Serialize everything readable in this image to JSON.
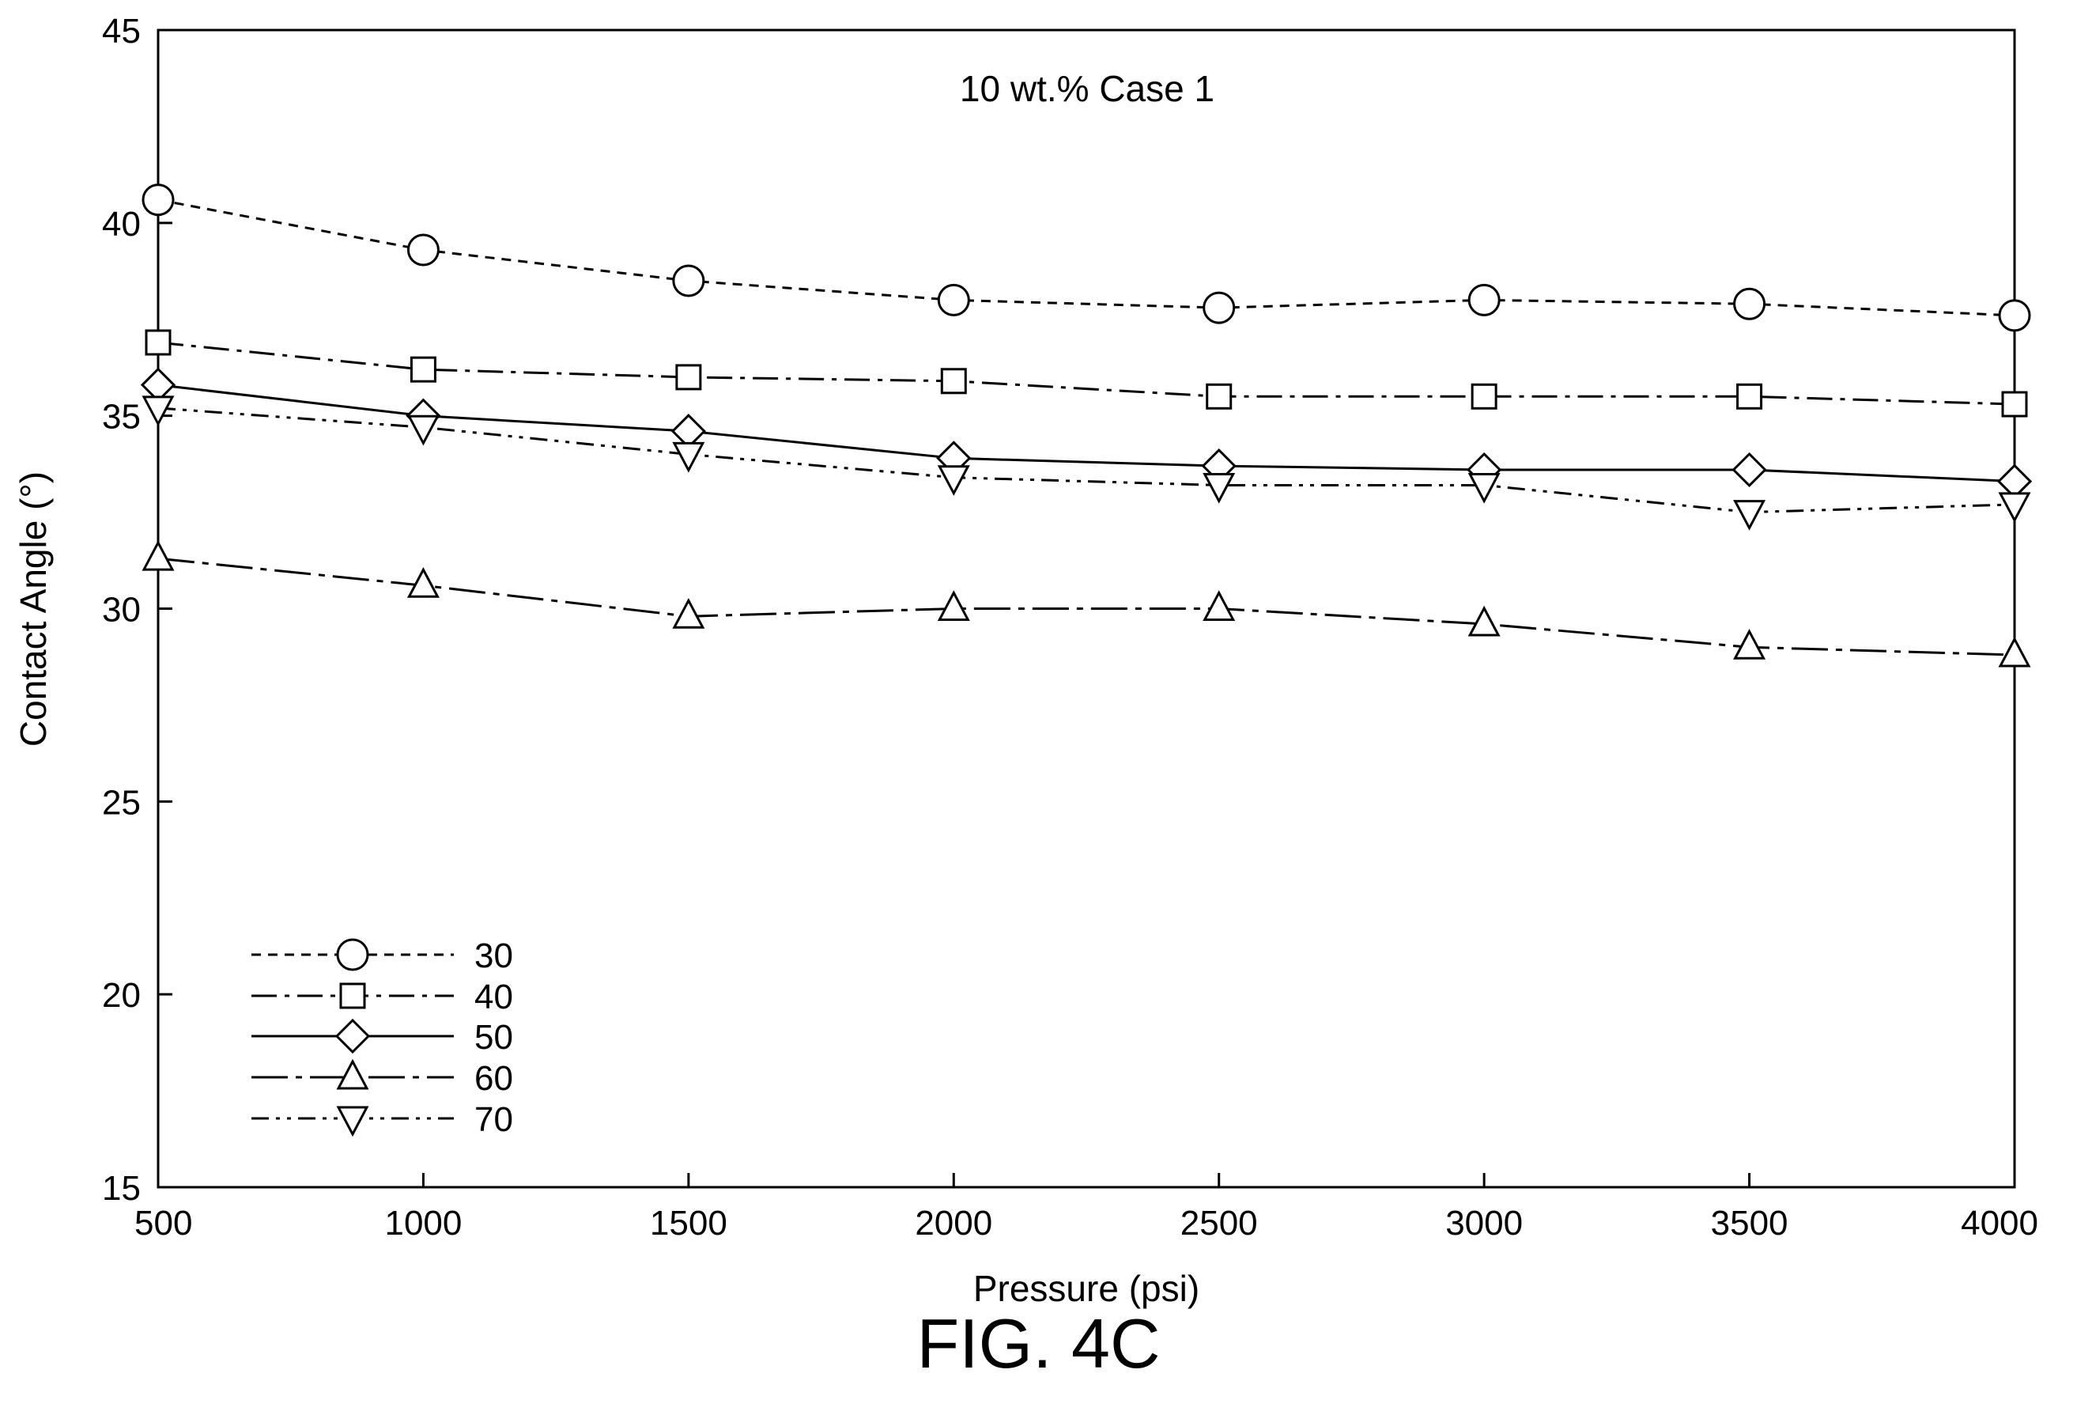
{
  "figure_label": "FIG. 4C",
  "chart_data": {
    "type": "line",
    "title": "10 wt.% Case 1",
    "xlabel": "Pressure (psi)",
    "ylabel": "Contact Angle (°)",
    "xlim": [
      500,
      4000
    ],
    "ylim": [
      15,
      45
    ],
    "x_ticks": [
      500,
      1000,
      1500,
      2000,
      2500,
      3000,
      3500,
      4000
    ],
    "y_ticks": [
      15,
      20,
      25,
      30,
      35,
      40,
      45
    ],
    "grid": false,
    "legend_position": "bottom-left",
    "x": [
      500,
      1000,
      1500,
      2000,
      2500,
      3000,
      3500,
      4000
    ],
    "series": [
      {
        "name": "30",
        "marker": "circle",
        "dash": "short-dash",
        "values": [
          40.6,
          39.3,
          38.5,
          38.0,
          37.8,
          38.0,
          37.9,
          37.6
        ]
      },
      {
        "name": "40",
        "marker": "square",
        "dash": "dash-dot",
        "values": [
          36.9,
          36.2,
          36.0,
          35.9,
          35.5,
          35.5,
          35.5,
          35.3
        ]
      },
      {
        "name": "50",
        "marker": "diamond",
        "dash": "solid",
        "values": [
          35.8,
          35.0,
          34.6,
          33.9,
          33.7,
          33.6,
          33.6,
          33.3
        ]
      },
      {
        "name": "60",
        "marker": "triangle-up",
        "dash": "long-dash-dot",
        "values": [
          31.3,
          30.6,
          29.8,
          30.0,
          30.0,
          29.6,
          29.0,
          28.8
        ]
      },
      {
        "name": "70",
        "marker": "triangle-down",
        "dash": "dash-dot-dot",
        "values": [
          35.2,
          34.7,
          34.0,
          33.4,
          33.2,
          33.2,
          32.5,
          32.7
        ]
      }
    ]
  }
}
